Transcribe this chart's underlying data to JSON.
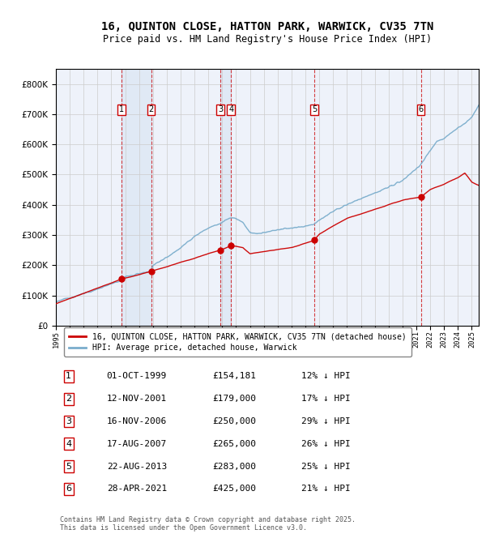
{
  "title": "16, QUINTON CLOSE, HATTON PARK, WARWICK, CV35 7TN",
  "subtitle": "Price paid vs. HM Land Registry's House Price Index (HPI)",
  "footer": "Contains HM Land Registry data © Crown copyright and database right 2025.\nThis data is licensed under the Open Government Licence v3.0.",
  "legend_property": "16, QUINTON CLOSE, HATTON PARK, WARWICK, CV35 7TN (detached house)",
  "legend_hpi": "HPI: Average price, detached house, Warwick",
  "transactions": [
    {
      "num": 1,
      "date": "01-OCT-1999",
      "price": "£154,181",
      "hpi": "12% ↓ HPI",
      "year": 1999.75
    },
    {
      "num": 2,
      "date": "12-NOV-2001",
      "price": "£179,000",
      "hpi": "17% ↓ HPI",
      "year": 2001.87
    },
    {
      "num": 3,
      "date": "16-NOV-2006",
      "price": "£250,000",
      "hpi": "29% ↓ HPI",
      "year": 2006.87
    },
    {
      "num": 4,
      "date": "17-AUG-2007",
      "price": "£265,000",
      "hpi": "26% ↓ HPI",
      "year": 2007.63
    },
    {
      "num": 5,
      "date": "22-AUG-2013",
      "price": "£283,000",
      "hpi": "25% ↓ HPI",
      "year": 2013.64
    },
    {
      "num": 6,
      "date": "28-APR-2021",
      "price": "£425,000",
      "hpi": "21% ↓ HPI",
      "year": 2021.33
    }
  ],
  "transaction_prices": [
    154181,
    179000,
    250000,
    265000,
    283000,
    425000
  ],
  "ylim": [
    0,
    850000
  ],
  "xlim": [
    1995.0,
    2025.5
  ],
  "chart_bg": "#eef2fa",
  "red_color": "#cc0000",
  "blue_color": "#7aadcc",
  "grid_color": "#cccccc",
  "title_fontsize": 10,
  "subtitle_fontsize": 8.5
}
